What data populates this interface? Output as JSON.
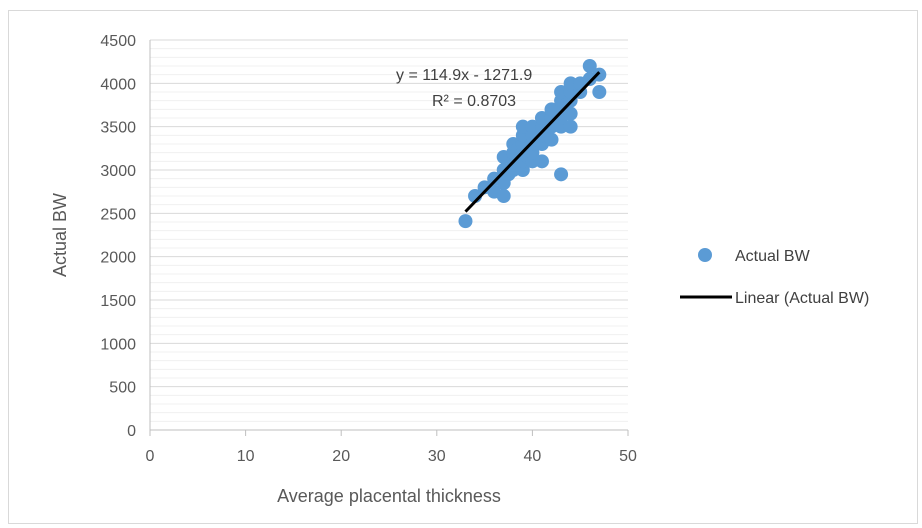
{
  "chart_data": {
    "type": "scatter",
    "title": "",
    "xlabel": "Average placental thickness",
    "ylabel": "Actual BW",
    "xlim": [
      0,
      50
    ],
    "ylim": [
      0,
      4500
    ],
    "x_ticks": [
      "0",
      "10",
      "20",
      "30",
      "40",
      "50"
    ],
    "y_ticks": [
      "0",
      "500",
      "1000",
      "1500",
      "2000",
      "2500",
      "3000",
      "3500",
      "4000",
      "4500"
    ],
    "grid": "horizontal major and minor",
    "legend_position": "right",
    "series": [
      {
        "name": "Actual BW",
        "color": "#5b9bd5",
        "marker": "circle",
        "points": [
          [
            33,
            2410
          ],
          [
            34,
            2700
          ],
          [
            35,
            2800
          ],
          [
            36,
            2750
          ],
          [
            36,
            2900
          ],
          [
            37,
            2700
          ],
          [
            37,
            2850
          ],
          [
            37,
            3000
          ],
          [
            37,
            3150
          ],
          [
            37.5,
            2950
          ],
          [
            38,
            3000
          ],
          [
            38,
            3100
          ],
          [
            38,
            3200
          ],
          [
            38,
            3300
          ],
          [
            38.5,
            3250
          ],
          [
            39,
            3000
          ],
          [
            39,
            3100
          ],
          [
            39,
            3200
          ],
          [
            39,
            3300
          ],
          [
            39,
            3400
          ],
          [
            39,
            3500
          ],
          [
            39.5,
            3150
          ],
          [
            40,
            3100
          ],
          [
            40,
            3200
          ],
          [
            40,
            3300
          ],
          [
            40,
            3400
          ],
          [
            40,
            3500
          ],
          [
            40.5,
            3350
          ],
          [
            41,
            3100
          ],
          [
            41,
            3300
          ],
          [
            41,
            3400
          ],
          [
            41,
            3500
          ],
          [
            41,
            3600
          ],
          [
            41.5,
            3450
          ],
          [
            42,
            3350
          ],
          [
            42,
            3500
          ],
          [
            42,
            3600
          ],
          [
            42,
            3700
          ],
          [
            42.5,
            3550
          ],
          [
            43,
            2950
          ],
          [
            43,
            3500
          ],
          [
            43,
            3600
          ],
          [
            43,
            3700
          ],
          [
            43,
            3800
          ],
          [
            43,
            3900
          ],
          [
            43.5,
            3750
          ],
          [
            44,
            3500
          ],
          [
            44,
            3650
          ],
          [
            44,
            3800
          ],
          [
            44,
            3900
          ],
          [
            44,
            4000
          ],
          [
            45,
            3900
          ],
          [
            45,
            4000
          ],
          [
            46,
            4050
          ],
          [
            46,
            4200
          ],
          [
            47,
            3900
          ],
          [
            47,
            4100
          ]
        ]
      }
    ],
    "trendline": {
      "name": "Linear (Actual BW)",
      "color": "#000000",
      "slope": 114.9,
      "intercept": -1271.9,
      "x_range": [
        33,
        47
      ],
      "equation_label": "y = 114.9x - 1271.9",
      "r2_label": "R² = 0.8703"
    }
  }
}
